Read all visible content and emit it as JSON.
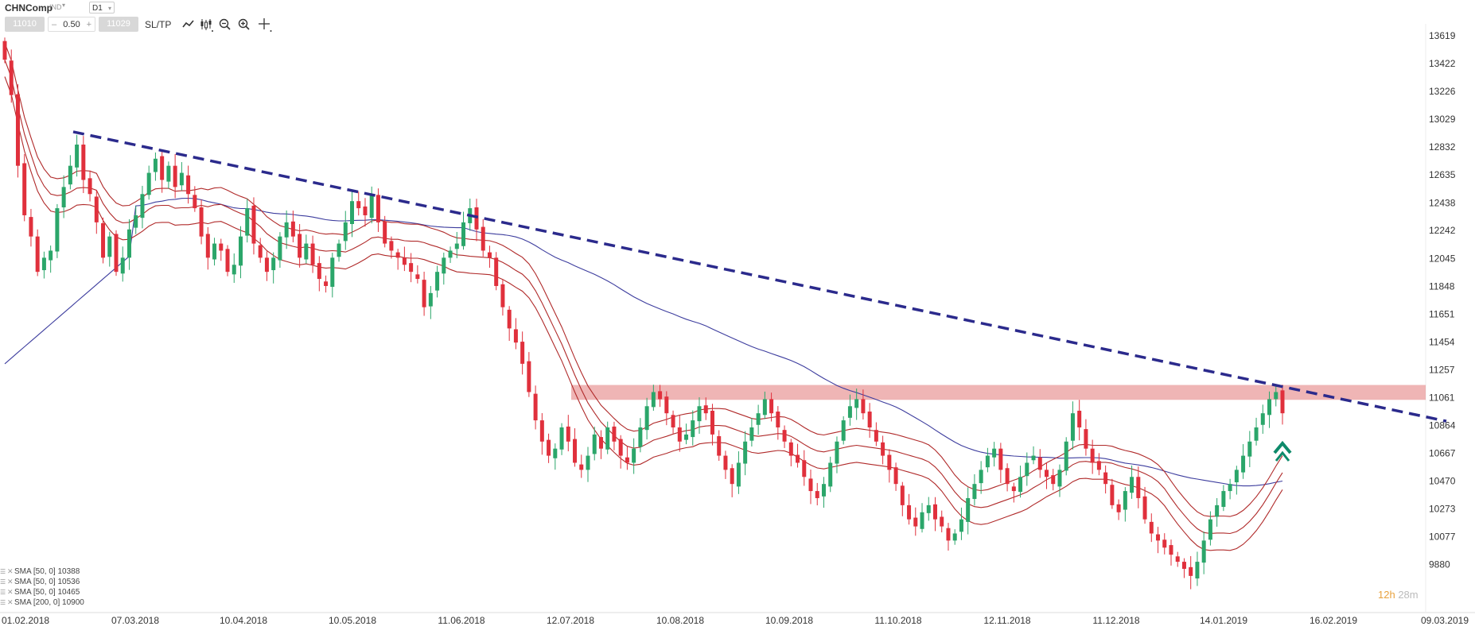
{
  "toolbar": {
    "symbol": "CHNComp",
    "instrument_type": "IND",
    "timeframe": "D1",
    "bid": "11010",
    "step_minus": "–",
    "step_value": "0.50",
    "step_plus": "+",
    "ask": "11029",
    "sltp": "SL/TP",
    "tools": [
      "line-chart-icon",
      "candlestick-icon",
      "zoom-out-icon",
      "zoom-in-icon",
      "crosshair-icon"
    ]
  },
  "legend": [
    {
      "label": "SMA [50, 0] 10388"
    },
    {
      "label": "SMA [50, 0] 10536"
    },
    {
      "label": "SMA [50, 0] 10465"
    },
    {
      "label": "SMA [200, 0] 10900"
    }
  ],
  "timer": {
    "hours": "12h",
    "minutes": "28m"
  },
  "colors": {
    "bull": "#2ba66a",
    "bear": "#e0303c",
    "envelope": "#b02a2a",
    "sma200": "#3d3d9e",
    "trendline": "#2b2a8c",
    "zone": "#e06b6b",
    "arrow": "#0d8a6a"
  },
  "chart_data": {
    "type": "candlestick",
    "y_ticks": [
      13619,
      13422,
      13226,
      13029,
      12832,
      12635,
      12438,
      12242,
      12045,
      11848,
      11651,
      11454,
      11257,
      11061,
      10864,
      10667,
      10470,
      10273,
      10077,
      9880
    ],
    "x_ticks": [
      "01.02.2018",
      "07.03.2018",
      "10.04.2018",
      "10.05.2018",
      "11.06.2018",
      "12.07.2018",
      "10.08.2018",
      "10.09.2018",
      "11.10.2018",
      "12.11.2018",
      "11.12.2018",
      "14.01.2019",
      "16.02.2019",
      "09.03.2019"
    ],
    "ylim": [
      9760,
      13670
    ],
    "resistance_zone": {
      "from_date": "12.07.2018",
      "to_date": "09.03.2019",
      "low": 11045,
      "high": 11150
    },
    "trendline": {
      "from": {
        "date": "07.03.2018",
        "value": 12940
      },
      "to": {
        "date": "09.03.2019",
        "value": 10894
      }
    },
    "close": [
      13450,
      13200,
      12700,
      12350,
      12200,
      11950,
      12050,
      12100,
      12400,
      12550,
      12700,
      12850,
      12600,
      12500,
      12300,
      12050,
      12200,
      11950,
      12050,
      12250,
      12350,
      12500,
      12650,
      12750,
      12600,
      12700,
      12550,
      12650,
      12500,
      12400,
      12200,
      12050,
      12150,
      12100,
      11950,
      12000,
      12200,
      12400,
      12150,
      12050,
      11950,
      12050,
      12200,
      12300,
      12200,
      12050,
      12150,
      12000,
      11900,
      11850,
      12050,
      12150,
      12300,
      12450,
      12400,
      12350,
      12500,
      12300,
      12150,
      12100,
      12050,
      12000,
      11950,
      11900,
      11700,
      11800,
      11950,
      12050,
      12100,
      12150,
      12300,
      12400,
      12250,
      12100,
      12050,
      11850,
      11700,
      11550,
      11450,
      11300,
      11100,
      10900,
      10750,
      10650,
      10700,
      10850,
      10750,
      10600,
      10550,
      10650,
      10800,
      10700,
      10850,
      10750,
      10650,
      10600,
      10700,
      10850,
      11000,
      11100,
      11050,
      10950,
      10850,
      10750,
      10800,
      10900,
      11000,
      10950,
      10800,
      10650,
      10550,
      10450,
      10600,
      10750,
      10850,
      10950,
      11050,
      10950,
      10850,
      10750,
      10650,
      10600,
      10500,
      10400,
      10350,
      10450,
      10600,
      10750,
      10900,
      11000,
      11050,
      10950,
      10850,
      10750,
      10650,
      10550,
      10450,
      10300,
      10200,
      10150,
      10250,
      10300,
      10200,
      10150,
      10050,
      10100,
      10200,
      10350,
      10450,
      10550,
      10650,
      10700,
      10550,
      10450,
      10400,
      10500,
      10600,
      10650,
      10550,
      10500,
      10450,
      10550,
      10750,
      10950,
      10850,
      10700,
      10600,
      10550,
      10450,
      10300,
      10250,
      10400,
      10500,
      10350,
      10200,
      10100,
      10050,
      10000,
      9950,
      9900,
      9850,
      9800,
      9900,
      10050,
      10200,
      10300,
      10400,
      10450,
      10550,
      10650,
      10750,
      10850,
      10950,
      11050,
      11100,
      10950
    ]
  }
}
